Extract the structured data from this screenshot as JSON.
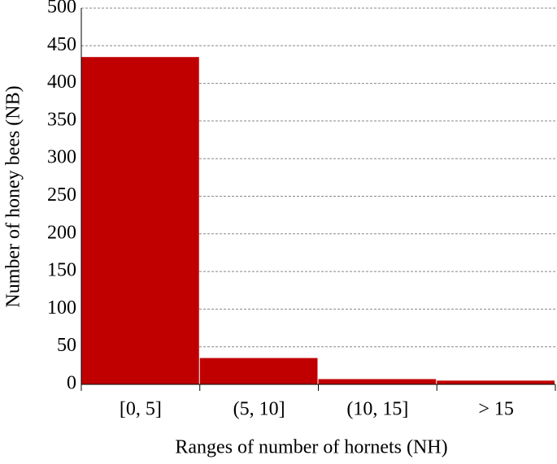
{
  "chart_data": {
    "type": "bar",
    "categories": [
      "[0, 5]",
      "(5, 10]",
      "(10, 15]",
      "> 15"
    ],
    "values": [
      435,
      35,
      7,
      5
    ],
    "color": "#c00000",
    "xlabel": "Ranges of number of hornets (NH)",
    "ylabel": "Number of honey bees (NB)",
    "ylim": [
      0,
      500
    ],
    "yticks": [
      0,
      50,
      100,
      150,
      200,
      250,
      300,
      350,
      400,
      450,
      500
    ],
    "grid": true
  }
}
